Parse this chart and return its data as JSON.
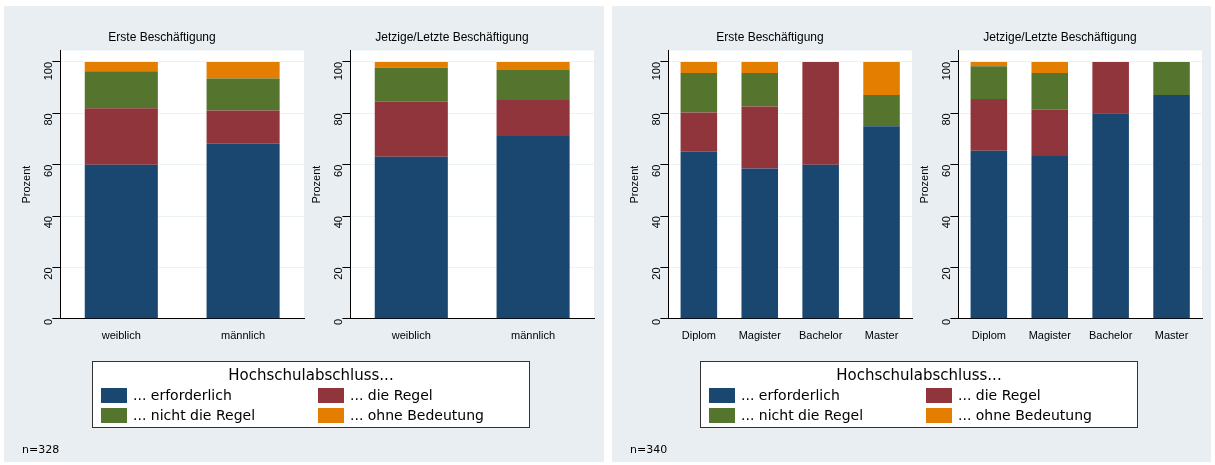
{
  "chart_data": [
    {
      "type": "bar",
      "title": "Erste Beschäftigung",
      "ylabel": "Prozent",
      "categories": [
        "weiblich",
        "männlich"
      ],
      "stacked": true,
      "ylim": [
        0,
        104.5
      ],
      "yticks": [
        0,
        20,
        40,
        60,
        80,
        100
      ],
      "grid": "y",
      "legend": "bottom",
      "legend_title": "Hochschulabschluss...",
      "annotations": [
        "n=328"
      ],
      "series": [
        {
          "name": "... erforderlich",
          "color": "#1a476f",
          "values": [
            60,
            68.2
          ]
        },
        {
          "name": "... die Regel",
          "color": "#90353b",
          "values": [
            22,
            12.9
          ]
        },
        {
          "name": "... nicht die Regel",
          "color": "#55752f",
          "values": [
            14.4,
            12.5
          ]
        },
        {
          "name": "... ohne Bedeutung",
          "color": "#e37e00",
          "values": [
            3.6,
            6.4
          ]
        }
      ]
    },
    {
      "type": "bar",
      "title": "Jetzige/Letzte Beschäftigung",
      "ylabel": "Prozent",
      "categories": [
        "weiblich",
        "männlich"
      ],
      "stacked": true,
      "ylim": [
        0,
        104.5
      ],
      "yticks": [
        0,
        20,
        40,
        60,
        80,
        100
      ],
      "grid": "y",
      "series": [
        {
          "color": "#1a476f",
          "values": [
            63.1,
            71.2
          ]
        },
        {
          "color": "#90353b",
          "values": [
            21.4,
            14
          ]
        },
        {
          "color": "#55752f",
          "values": [
            13.2,
            11.7
          ]
        },
        {
          "color": "#e37e00",
          "values": [
            2.3,
            3.1
          ]
        }
      ]
    },
    {
      "type": "bar",
      "title": "Erste Beschäftigung",
      "ylabel": "Prozent",
      "categories": [
        "Diplom",
        "Magister",
        "Bachelor",
        "Master"
      ],
      "stacked": true,
      "ylim": [
        0,
        104.5
      ],
      "yticks": [
        0,
        20,
        40,
        60,
        80,
        100
      ],
      "grid": "y",
      "legend": "bottom",
      "legend_title": "Hochschulabschluss...",
      "annotations": [
        "n=340"
      ],
      "series": [
        {
          "name": "... erforderlich",
          "color": "#1a476f",
          "values": [
            65,
            58.5,
            60,
            75
          ]
        },
        {
          "name": "... die Regel",
          "color": "#90353b",
          "values": [
            15.3,
            24.2,
            40,
            0
          ]
        },
        {
          "name": "... nicht die Regel",
          "color": "#55752f",
          "values": [
            15.4,
            13,
            0,
            12.1
          ]
        },
        {
          "name": "... ohne Bedeutung",
          "color": "#e37e00",
          "values": [
            4.3,
            4.3,
            0,
            12.9
          ]
        }
      ]
    },
    {
      "type": "bar",
      "title": "Jetzige/Letzte Beschäftigung",
      "ylabel": "Prozent",
      "categories": [
        "Diplom",
        "Magister",
        "Bachelor",
        "Master"
      ],
      "stacked": true,
      "ylim": [
        0,
        104.5
      ],
      "yticks": [
        0,
        20,
        40,
        60,
        80,
        100
      ],
      "grid": "y",
      "series": [
        {
          "color": "#1a476f",
          "values": [
            65.4,
            63.4,
            80,
            87.1
          ]
        },
        {
          "color": "#90353b",
          "values": [
            20.2,
            18,
            20,
            0
          ]
        },
        {
          "color": "#55752f",
          "values": [
            12.7,
            14.3,
            0,
            12.9
          ]
        },
        {
          "color": "#e37e00",
          "values": [
            1.7,
            4.3,
            0,
            0
          ]
        }
      ]
    }
  ]
}
